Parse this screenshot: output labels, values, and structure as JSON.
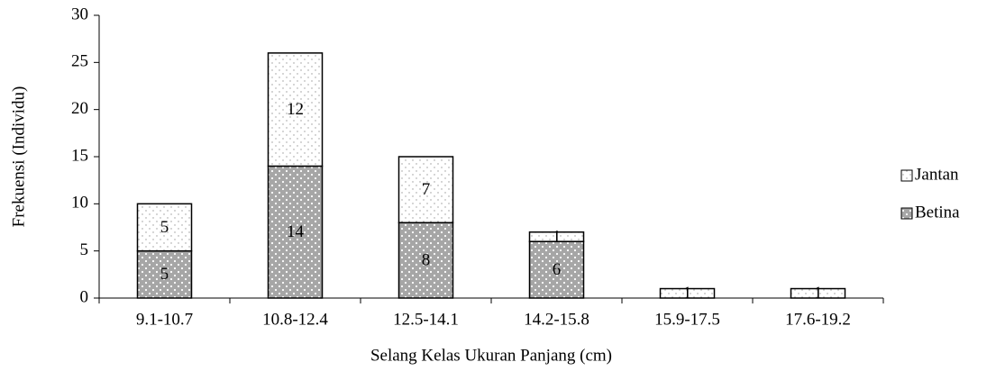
{
  "chart_data": {
    "type": "stacked-bar",
    "y_label": "Frekuensi (Individu)",
    "x_label": "Selang Kelas Ukuran Panjang (cm)",
    "categories": [
      "9.1-10.7",
      "10.8-12.4",
      "12.5-14.1",
      "14.2-15.8",
      "15.9-17.5",
      "17.6-19.2"
    ],
    "series": [
      {
        "name": "Betina",
        "color": "#a6a6a6",
        "values": [
          5,
          14,
          8,
          6,
          0,
          0
        ]
      },
      {
        "name": "Jantan",
        "color": "#ffffff",
        "values": [
          5,
          12,
          7,
          1,
          1,
          1
        ]
      }
    ],
    "ylim": [
      0,
      30
    ],
    "yticks": [
      0,
      5,
      10,
      15,
      20,
      25,
      30
    ],
    "legend": "right"
  }
}
